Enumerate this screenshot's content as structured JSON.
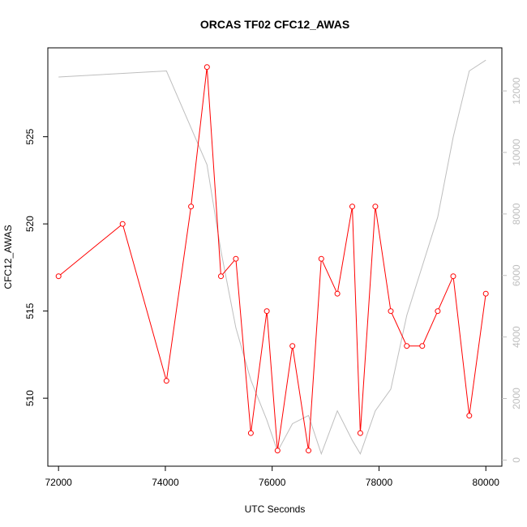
{
  "chart_data": {
    "type": "line",
    "title": "ORCAS TF02 CFC12_AWAS",
    "xlabel": "UTC Seconds",
    "ylabel": "CFC12_AWAS",
    "xlim": [
      71800,
      80300
    ],
    "ylim": [
      506.1,
      530.1
    ],
    "y2lim": [
      -200,
      13400
    ],
    "x_ticks": [
      "72000",
      "74000",
      "76000",
      "78000",
      "80000"
    ],
    "y_ticks": [
      "510",
      "515",
      "520",
      "525"
    ],
    "y2_ticks": [
      "0",
      "2000",
      "4000",
      "6000",
      "8000",
      "10000",
      "12000"
    ],
    "colors": {
      "primary": "#ff0000",
      "secondary": "#bebebe",
      "axes": "#000000"
    },
    "series": [
      {
        "axis": "left",
        "style": "line-with-points",
        "color": "#ff0000",
        "x": [
          72000,
          73200,
          74020,
          74480,
          74780,
          75040,
          75320,
          75600,
          75900,
          76100,
          76380,
          76680,
          76920,
          77220,
          77500,
          77650,
          77930,
          78220,
          78520,
          78810,
          79100,
          79390,
          79690,
          80000
        ],
        "y": [
          517,
          520,
          511,
          521,
          529,
          517,
          518,
          508,
          515,
          507,
          513,
          507,
          518,
          516,
          521,
          508,
          521,
          515,
          513,
          513,
          515,
          517,
          509,
          516
        ]
      },
      {
        "axis": "right",
        "style": "line",
        "color": "#bebebe",
        "x": [
          72000,
          74020,
          74480,
          74780,
          75040,
          75320,
          75600,
          75900,
          76100,
          76380,
          76680,
          76920,
          77220,
          77500,
          77650,
          77930,
          78220,
          78520,
          78810,
          79100,
          79390,
          79690,
          80000
        ],
        "y": [
          12450,
          12650,
          10800,
          9600,
          6800,
          4300,
          2600,
          1300,
          280,
          1180,
          1450,
          200,
          1600,
          640,
          200,
          1600,
          2300,
          4700,
          6300,
          7900,
          10500,
          12650,
          13000
        ]
      }
    ]
  }
}
